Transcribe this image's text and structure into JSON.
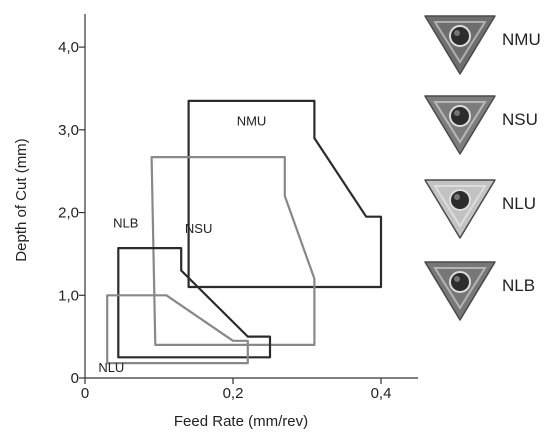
{
  "chart_data": {
    "type": "area",
    "xlabel": "Feed Rate (mm/rev)",
    "ylabel": "Depth of Cut (mm)",
    "xlim": [
      0,
      0.45
    ],
    "ylim": [
      0,
      4.4
    ],
    "x_ticks": [
      {
        "value": 0,
        "label": "0"
      },
      {
        "value": 0.2,
        "label": "0,2"
      },
      {
        "value": 0.4,
        "label": "0,4"
      }
    ],
    "y_ticks": [
      {
        "value": 0,
        "label": "0"
      },
      {
        "value": 1.0,
        "label": "1,0"
      },
      {
        "value": 2.0,
        "label": "2,0"
      },
      {
        "value": 3.0,
        "label": "3,0"
      },
      {
        "value": 4.0,
        "label": "4,0"
      }
    ],
    "series": [
      {
        "name": "NMU",
        "color": "#2b2b2b",
        "outline": [
          [
            0.14,
            1.1
          ],
          [
            0.4,
            1.1
          ],
          [
            0.4,
            1.95
          ],
          [
            0.38,
            1.95
          ],
          [
            0.31,
            2.9
          ],
          [
            0.31,
            3.35
          ],
          [
            0.14,
            3.35
          ]
        ]
      },
      {
        "name": "NSU",
        "color": "#888888",
        "outline": [
          [
            0.095,
            0.4
          ],
          [
            0.31,
            0.4
          ],
          [
            0.31,
            1.2
          ],
          [
            0.27,
            2.2
          ],
          [
            0.27,
            2.67
          ],
          [
            0.09,
            2.67
          ]
        ]
      },
      {
        "name": "NLB",
        "color": "#2b2b2b",
        "outline": [
          [
            0.045,
            0.25
          ],
          [
            0.25,
            0.25
          ],
          [
            0.25,
            0.5
          ],
          [
            0.22,
            0.5
          ],
          [
            0.13,
            1.3
          ],
          [
            0.13,
            1.57
          ],
          [
            0.045,
            1.57
          ]
        ]
      },
      {
        "name": "NLU",
        "color": "#888888",
        "outline": [
          [
            0.03,
            0.18
          ],
          [
            0.22,
            0.18
          ],
          [
            0.22,
            0.45
          ],
          [
            0.2,
            0.45
          ],
          [
            0.11,
            1.0
          ],
          [
            0.03,
            1.0
          ]
        ]
      }
    ]
  },
  "inserts": [
    {
      "label": "NMU",
      "icon": "triangular-insert-dark",
      "color": "#6e6e6e"
    },
    {
      "label": "NSU",
      "icon": "triangular-insert-dark",
      "color": "#7c7c7c"
    },
    {
      "label": "NLU",
      "icon": "triangular-insert-light",
      "color": "#c2c2c2"
    },
    {
      "label": "NLB",
      "icon": "triangular-insert-dark",
      "color": "#777777"
    }
  ]
}
